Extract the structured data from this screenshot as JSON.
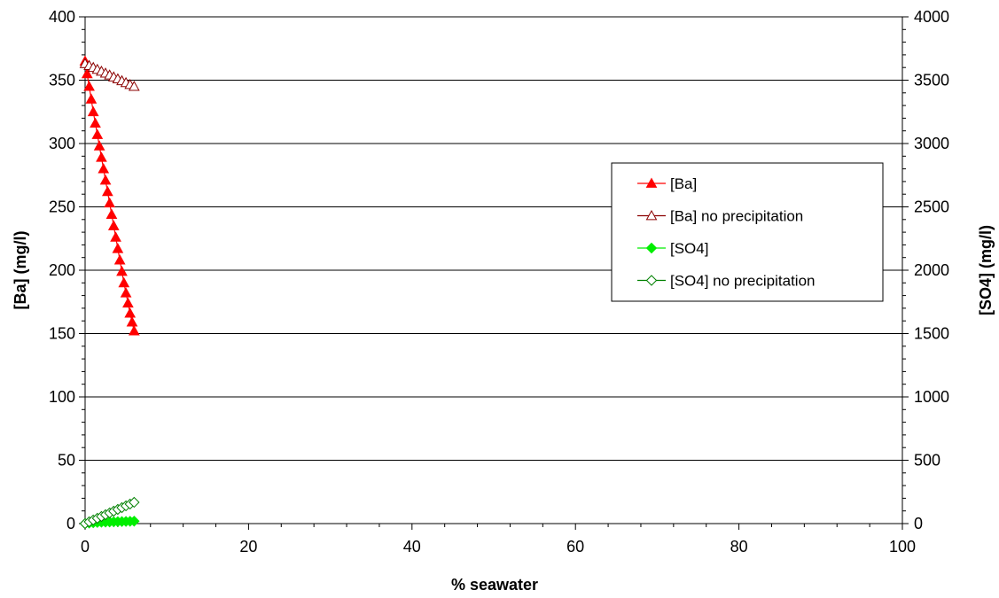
{
  "chart_data": {
    "type": "scatter",
    "xlabel": "% seawater",
    "ylabel": "[Ba] (mg/l)",
    "y2label": "[SO4] (mg/l)",
    "xlim": [
      0,
      100
    ],
    "ylim": [
      0,
      400
    ],
    "y2lim": [
      0,
      4000
    ],
    "x_ticks": [
      0,
      20,
      40,
      60,
      80,
      100
    ],
    "y_ticks": [
      0,
      50,
      100,
      150,
      200,
      250,
      300,
      350,
      400
    ],
    "y2_ticks": [
      0,
      500,
      1000,
      1500,
      2000,
      2500,
      3000,
      3500,
      4000
    ],
    "grid": "horizontal major gridlines",
    "legend_position": "right",
    "series": [
      {
        "name": "[Ba]",
        "axis": "left",
        "color": "#ff0000",
        "marker": "triangle-filled",
        "x": [
          0,
          0.25,
          0.5,
          0.75,
          1,
          1.25,
          1.5,
          1.75,
          2,
          2.25,
          2.5,
          2.75,
          3,
          3.25,
          3.5,
          3.75,
          4,
          4.25,
          4.5,
          4.75,
          5,
          5.25,
          5.5,
          5.75,
          6
        ],
        "y": [
          365,
          355,
          345,
          335,
          325,
          316,
          307,
          298,
          289,
          280,
          271,
          262,
          253,
          244,
          235,
          226,
          217,
          208,
          199,
          190,
          182,
          174,
          166,
          159,
          152
        ]
      },
      {
        "name": "[Ba] no precipitation",
        "axis": "left",
        "color": "#8b0000",
        "marker": "triangle-open",
        "x": [
          0,
          0.5,
          1,
          1.5,
          2,
          2.5,
          3,
          3.5,
          4,
          4.5,
          5,
          5.5,
          6
        ],
        "y": [
          363,
          361.5,
          360,
          358.5,
          357,
          355.5,
          354,
          352.5,
          351,
          349.5,
          348,
          346.5,
          345
        ]
      },
      {
        "name": "[SO4]",
        "axis": "right",
        "color": "#00ee00",
        "marker": "diamond-filled",
        "x": [
          0,
          0.5,
          1,
          1.5,
          2,
          2.5,
          3,
          3.5,
          4,
          4.5,
          5,
          5.5,
          6
        ],
        "y": [
          0,
          4,
          7,
          9,
          11,
          12,
          13,
          14,
          15,
          16,
          17,
          18,
          19
        ]
      },
      {
        "name": "[SO4] no precipitation",
        "axis": "right",
        "color": "#008000",
        "marker": "diamond-open",
        "x": [
          0,
          0.5,
          1,
          1.5,
          2,
          2.5,
          3,
          3.5,
          4,
          4.5,
          5,
          5.5,
          6
        ],
        "y": [
          0,
          14,
          28,
          42,
          56,
          70,
          84,
          98,
          112,
          126,
          140,
          154,
          168
        ]
      }
    ]
  }
}
